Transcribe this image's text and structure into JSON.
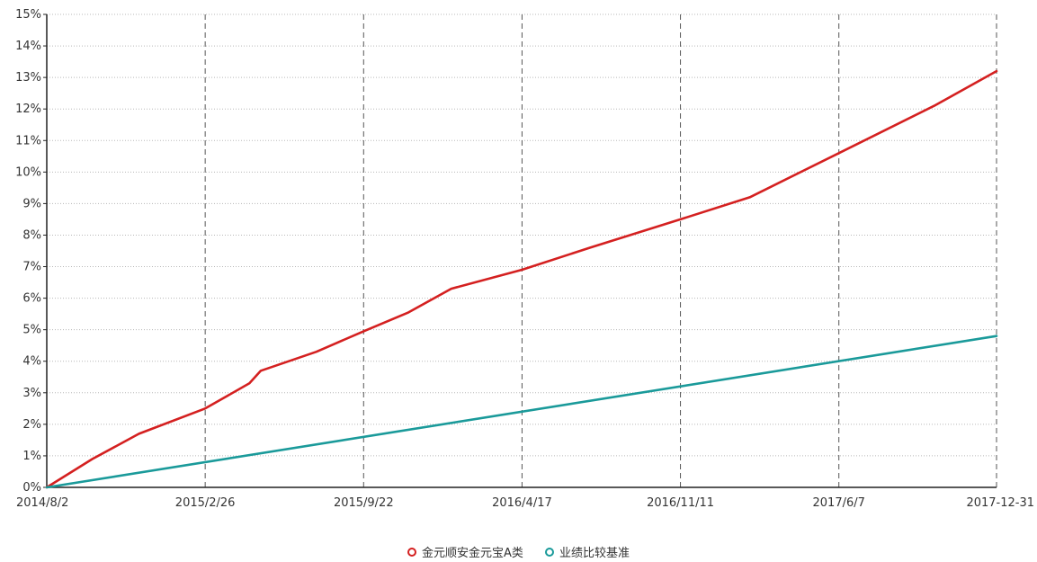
{
  "chart_data": {
    "type": "line",
    "title": "",
    "xlabel": "",
    "ylabel": "",
    "x_ticks": [
      "2014/8/2",
      "2015/2/26",
      "2015/9/22",
      "2016/4/17",
      "2016/11/11",
      "2017/6/7",
      "2017-12-31"
    ],
    "y_ticks": [
      "0%",
      "1%",
      "2%",
      "3%",
      "4%",
      "5%",
      "6%",
      "7%",
      "8%",
      "9%",
      "10%",
      "11%",
      "12%",
      "13%",
      "14%",
      "15%"
    ],
    "ylim": [
      0,
      15
    ],
    "grid": true,
    "legend_position": "bottom",
    "series": [
      {
        "name": "金元顺安金元宝A类",
        "color": "#d42020",
        "points": [
          [
            "2014/8/2",
            0.0
          ],
          [
            "2014/10/1",
            0.9
          ],
          [
            "2014/12/1",
            1.7
          ],
          [
            "2015/2/26",
            2.5
          ],
          [
            "2015/4/25",
            3.3
          ],
          [
            "2015/5/10",
            3.7
          ],
          [
            "2015/7/22",
            4.3
          ],
          [
            "2015/9/22",
            4.95
          ],
          [
            "2015/11/20",
            5.55
          ],
          [
            "2016/1/15",
            6.3
          ],
          [
            "2016/4/17",
            6.9
          ],
          [
            "2016/7/15",
            7.6
          ],
          [
            "2016/11/11",
            8.5
          ],
          [
            "2017/2/10",
            9.2
          ],
          [
            "2017/6/7",
            10.6
          ],
          [
            "2017/10/10",
            12.1
          ],
          [
            "2017-12-31",
            13.2
          ]
        ]
      },
      {
        "name": "业绩比较基准",
        "color": "#1a9a9a",
        "points": [
          [
            "2014/8/2",
            0.0
          ],
          [
            "2017-12-31",
            4.8
          ]
        ]
      }
    ]
  }
}
